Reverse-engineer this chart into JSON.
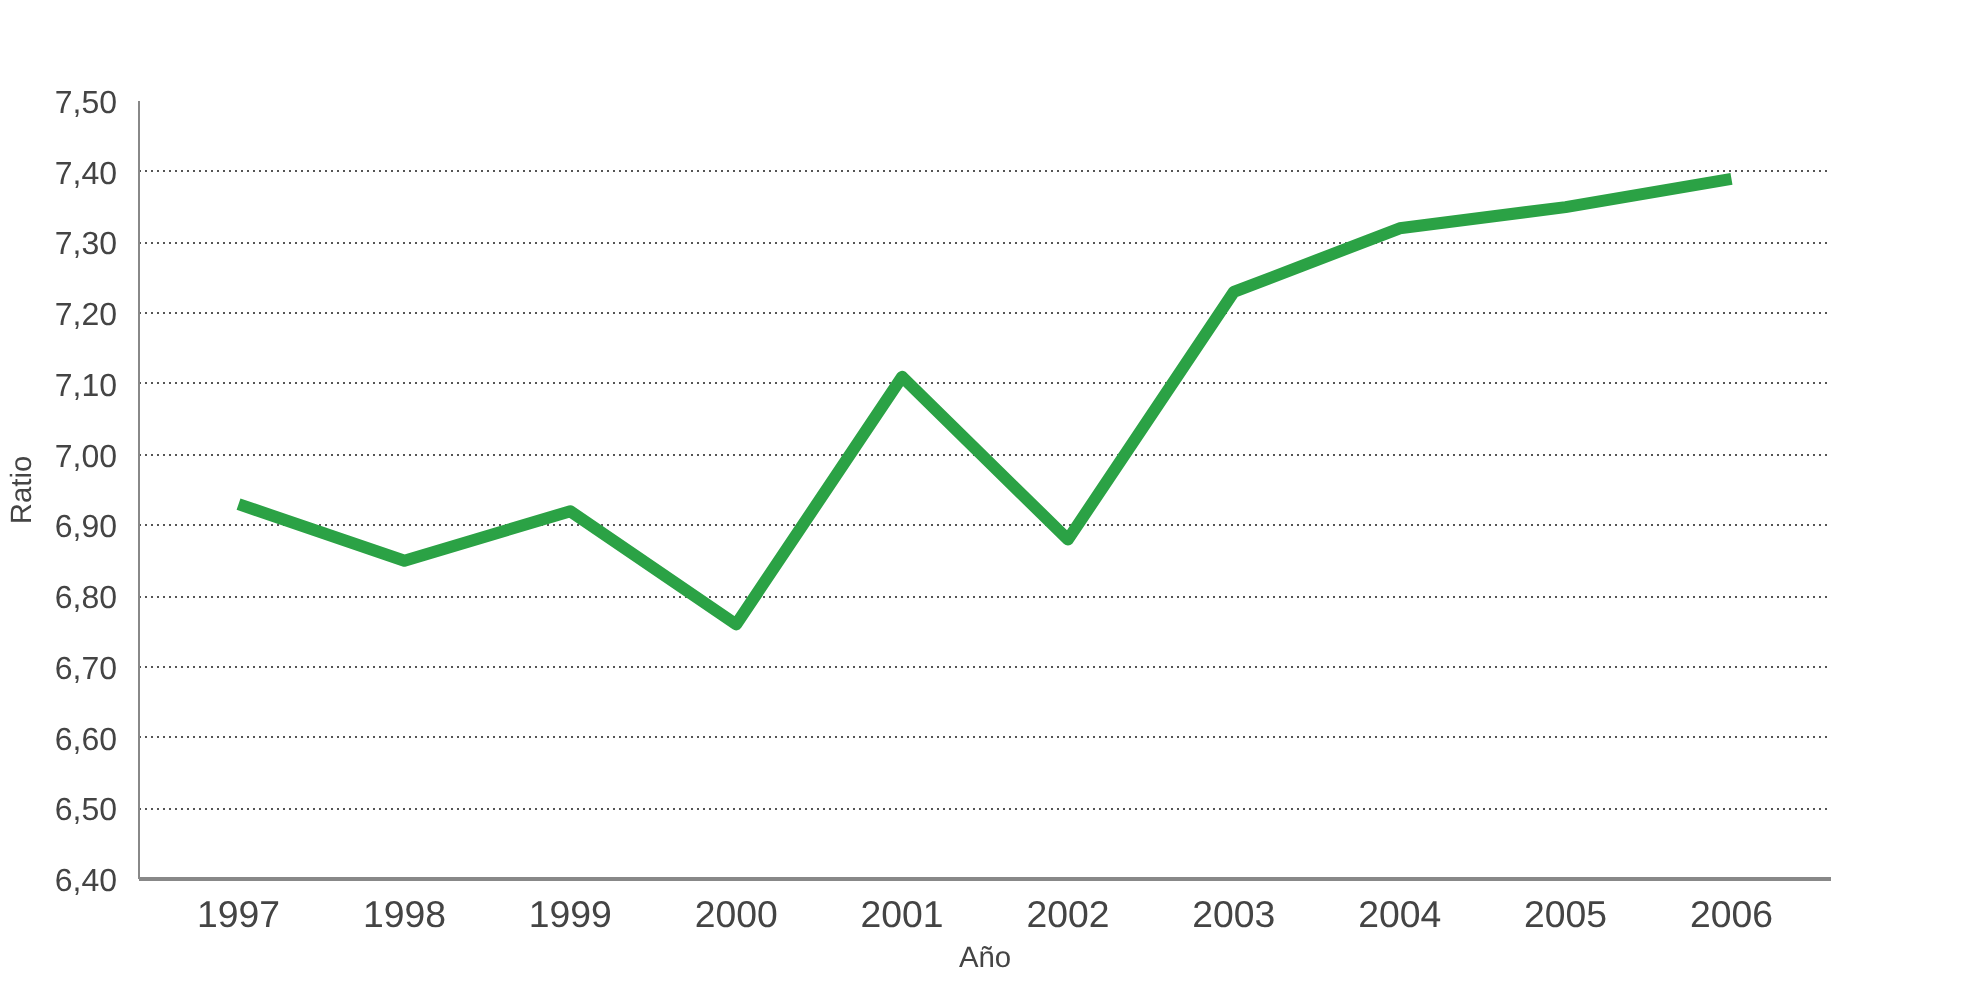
{
  "chart_data": {
    "type": "line",
    "xlabel": "Año",
    "ylabel": "Ratio",
    "categories": [
      "1997",
      "1998",
      "1999",
      "2000",
      "2001",
      "2002",
      "2003",
      "2004",
      "2005",
      "2006"
    ],
    "series": [
      {
        "color": "#2ba245",
        "values": [
          6.93,
          6.85,
          6.92,
          6.76,
          7.11,
          6.88,
          7.23,
          7.32,
          7.35,
          7.39
        ]
      }
    ],
    "ylim": [
      6.4,
      7.5
    ],
    "yticks": [
      {
        "value": 6.4,
        "label": "6,40"
      },
      {
        "value": 6.5,
        "label": "6,50"
      },
      {
        "value": 6.6,
        "label": "6,60"
      },
      {
        "value": 6.7,
        "label": "6,70"
      },
      {
        "value": 6.8,
        "label": "6,80"
      },
      {
        "value": 6.9,
        "label": "6,90"
      },
      {
        "value": 7.0,
        "label": "7,00"
      },
      {
        "value": 7.1,
        "label": "7,10"
      },
      {
        "value": 7.2,
        "label": "7,20"
      },
      {
        "value": 7.3,
        "label": "7,30"
      },
      {
        "value": 7.4,
        "label": "7,40"
      },
      {
        "value": 7.5,
        "label": "7,50"
      }
    ],
    "grid": "y",
    "marker": "none",
    "line_style": "solid"
  }
}
